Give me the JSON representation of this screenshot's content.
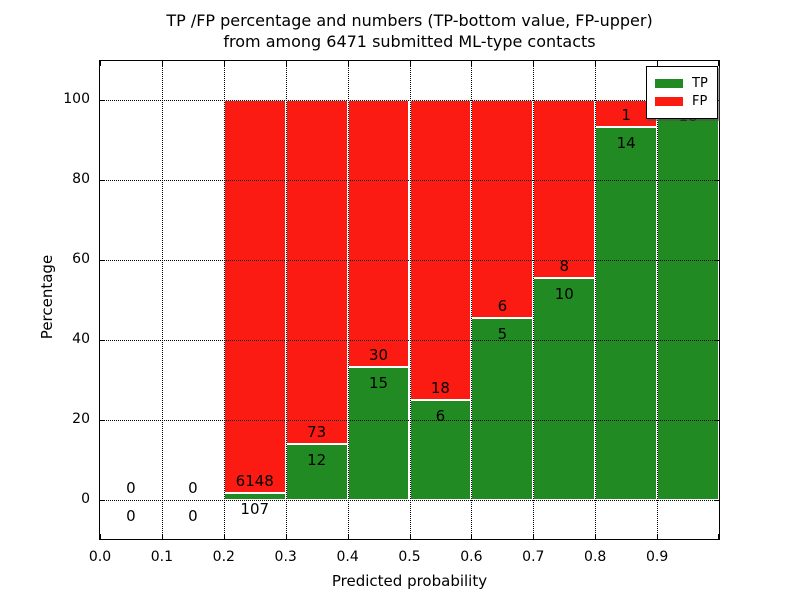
{
  "title": {
    "line1": "TP /FP percentage and numbers (TP-bottom value, FP-upper)",
    "line2": "from among 6471 submitted ML-type contacts"
  },
  "axes": {
    "xlabel": "Predicted probability",
    "ylabel": "Percentage",
    "xticks": [
      "0.0",
      "0.1",
      "0.2",
      "0.3",
      "0.4",
      "0.5",
      "0.6",
      "0.7",
      "0.8",
      "0.9"
    ],
    "yticks": [
      "0",
      "20",
      "40",
      "60",
      "80",
      "100"
    ]
  },
  "legend": [
    {
      "label": "TP",
      "color": "#228a22"
    },
    {
      "label": "FP",
      "color": "#fb1b13"
    }
  ],
  "chart_data": {
    "type": "bar",
    "stacked": true,
    "title": "TP /FP percentage and numbers (TP-bottom value, FP-upper) from among 6471 submitted ML-type contacts",
    "xlabel": "Predicted probability",
    "ylabel": "Percentage",
    "xlim": [
      0.0,
      1.0
    ],
    "ylim": [
      -10,
      110
    ],
    "grid": true,
    "legend_position": "upper right",
    "total_contacts": 6471,
    "bin_edges": [
      0.0,
      0.1,
      0.2,
      0.3,
      0.4,
      0.5,
      0.6,
      0.7,
      0.8,
      0.9,
      1.0
    ],
    "bin_centers": [
      0.05,
      0.15,
      0.25,
      0.35,
      0.45,
      0.55,
      0.65,
      0.75,
      0.85,
      0.95
    ],
    "series": [
      {
        "name": "TP",
        "color": "#228a22",
        "counts": [
          0,
          0,
          107,
          12,
          15,
          6,
          5,
          10,
          14,
          18
        ],
        "percent": [
          0,
          0,
          1.71,
          14.12,
          33.33,
          25.0,
          45.45,
          55.56,
          93.33,
          100.0
        ]
      },
      {
        "name": "FP",
        "color": "#fb1b13",
        "counts": [
          0,
          0,
          6148,
          73,
          30,
          18,
          6,
          8,
          1,
          0
        ],
        "percent": [
          0,
          0,
          98.29,
          85.88,
          66.67,
          75.0,
          54.55,
          44.44,
          6.67,
          0
        ]
      }
    ]
  }
}
